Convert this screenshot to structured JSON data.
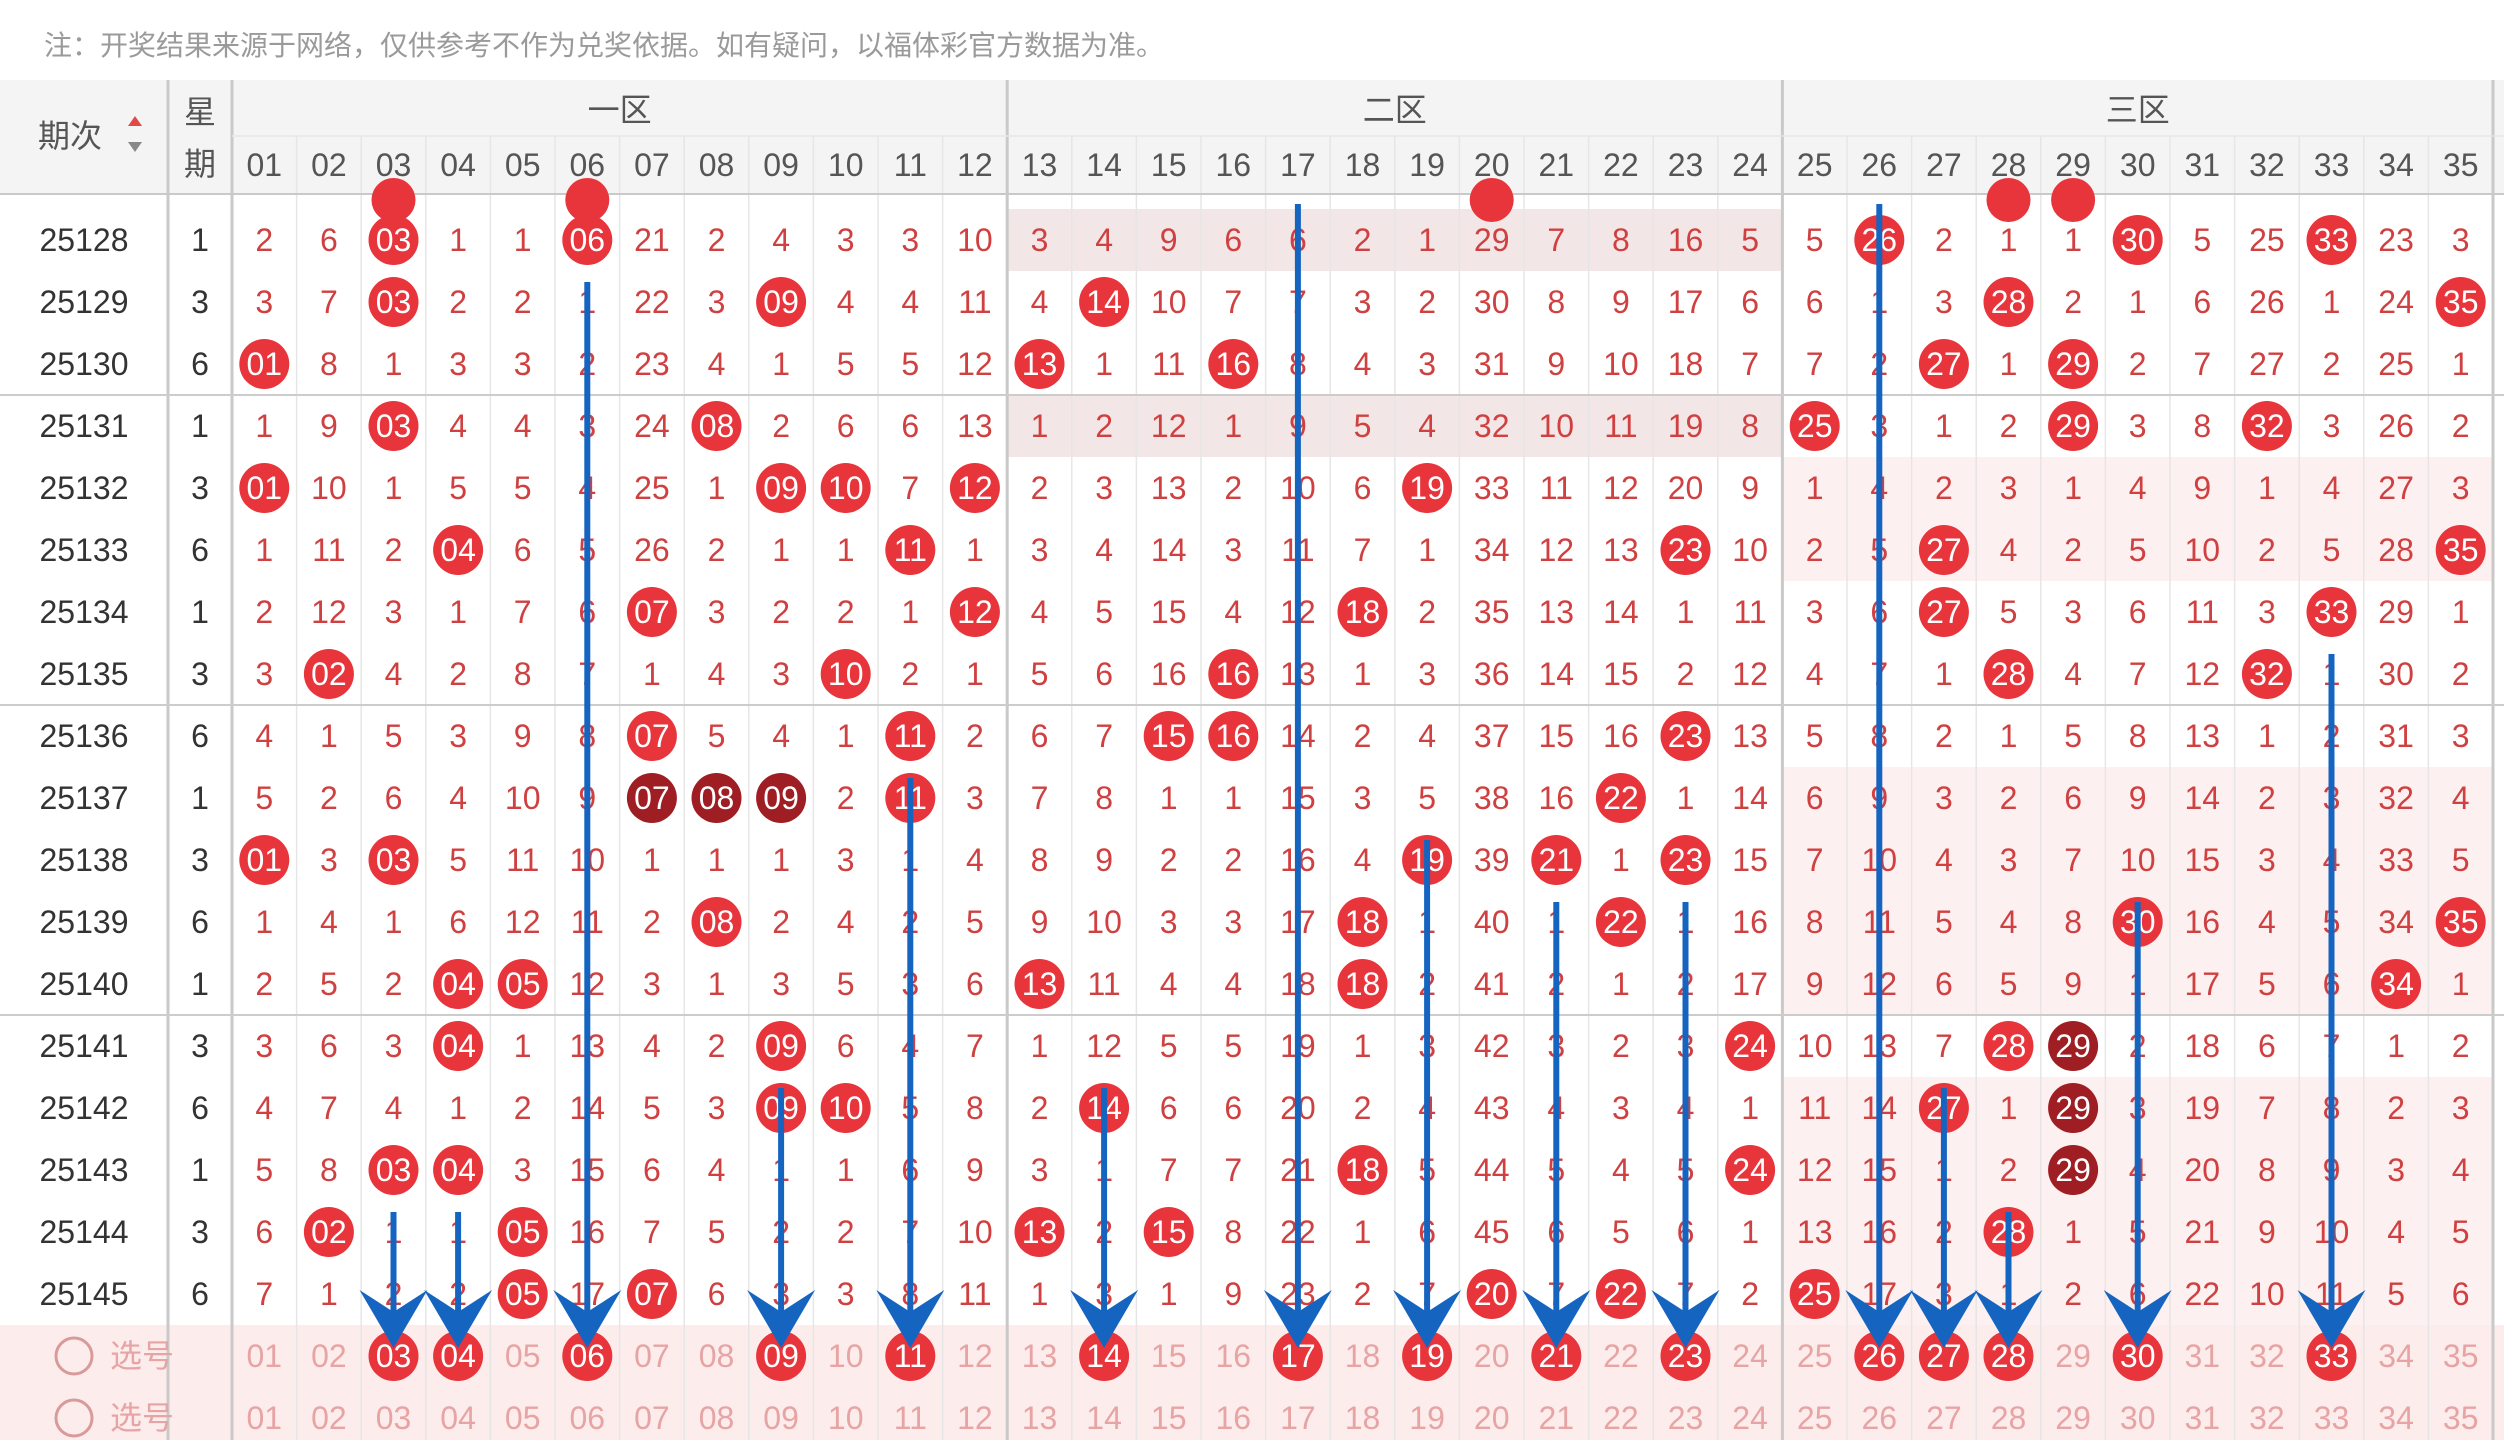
{
  "notice": "注：开奖结果来源于网络，仅供参考不作为兑奖依据。如有疑问，以福体彩官方数据为准。",
  "header": {
    "period_label": "期次",
    "week_label": "星期",
    "zones": [
      "一区",
      "二区",
      "三区"
    ],
    "numbers": [
      "01",
      "02",
      "03",
      "04",
      "05",
      "06",
      "07",
      "08",
      "09",
      "10",
      "11",
      "12",
      "13",
      "14",
      "15",
      "16",
      "17",
      "18",
      "19",
      "20",
      "21",
      "22",
      "23",
      "24",
      "25",
      "26",
      "27",
      "28",
      "29",
      "30",
      "31",
      "32",
      "33",
      "34",
      "35"
    ]
  },
  "rows": [
    {
      "period": "25128",
      "week": "1",
      "cells": [
        "2",
        "6",
        "03",
        "1",
        "1",
        "06",
        "21",
        "2",
        "4",
        "3",
        "3",
        "10",
        "3",
        "4",
        "9",
        "6",
        "6",
        "2",
        "1",
        "29",
        "7",
        "8",
        "16",
        "5",
        "5",
        "26",
        "2",
        "1",
        "1",
        "30",
        "5",
        "25",
        "33",
        "23",
        "3"
      ],
      "hits": [
        3,
        6,
        26,
        30,
        33
      ]
    },
    {
      "period": "25129",
      "week": "3",
      "cells": [
        "3",
        "7",
        "03",
        "2",
        "2",
        "1",
        "22",
        "3",
        "09",
        "4",
        "4",
        "11",
        "4",
        "14",
        "10",
        "7",
        "7",
        "3",
        "2",
        "30",
        "8",
        "9",
        "17",
        "6",
        "6",
        "1",
        "3",
        "28",
        "2",
        "1",
        "6",
        "26",
        "1",
        "24",
        "35"
      ],
      "hits": [
        3,
        9,
        14,
        28,
        35
      ]
    },
    {
      "period": "25130",
      "week": "6",
      "cells": [
        "01",
        "8",
        "1",
        "3",
        "3",
        "2",
        "23",
        "4",
        "1",
        "5",
        "5",
        "12",
        "13",
        "1",
        "11",
        "16",
        "8",
        "4",
        "3",
        "31",
        "9",
        "10",
        "18",
        "7",
        "7",
        "2",
        "27",
        "1",
        "29",
        "2",
        "7",
        "27",
        "2",
        "25",
        "1"
      ],
      "hits": [
        1,
        13,
        16,
        27,
        29
      ]
    },
    {
      "period": "25131",
      "week": "1",
      "cells": [
        "1",
        "9",
        "03",
        "4",
        "4",
        "3",
        "24",
        "08",
        "2",
        "6",
        "6",
        "13",
        "1",
        "2",
        "12",
        "1",
        "9",
        "5",
        "4",
        "32",
        "10",
        "11",
        "19",
        "8",
        "25",
        "3",
        "1",
        "2",
        "29",
        "3",
        "8",
        "32",
        "3",
        "26",
        "2"
      ],
      "hits": [
        3,
        8,
        25,
        29,
        32
      ]
    },
    {
      "period": "25132",
      "week": "3",
      "cells": [
        "01",
        "10",
        "1",
        "5",
        "5",
        "4",
        "25",
        "1",
        "09",
        "10",
        "7",
        "12",
        "2",
        "3",
        "13",
        "2",
        "10",
        "6",
        "19",
        "33",
        "11",
        "12",
        "20",
        "9",
        "1",
        "4",
        "2",
        "3",
        "1",
        "4",
        "9",
        "1",
        "4",
        "27",
        "3"
      ],
      "hits": [
        1,
        9,
        10,
        12,
        19
      ]
    },
    {
      "period": "25133",
      "week": "6",
      "cells": [
        "1",
        "11",
        "2",
        "04",
        "6",
        "5",
        "26",
        "2",
        "1",
        "1",
        "11",
        "1",
        "3",
        "4",
        "14",
        "3",
        "11",
        "7",
        "1",
        "34",
        "12",
        "13",
        "23",
        "10",
        "2",
        "5",
        "27",
        "4",
        "2",
        "5",
        "10",
        "2",
        "5",
        "28",
        "35"
      ],
      "hits": [
        4,
        11,
        23,
        27,
        35
      ]
    },
    {
      "period": "25134",
      "week": "1",
      "cells": [
        "2",
        "12",
        "3",
        "1",
        "7",
        "6",
        "07",
        "3",
        "2",
        "2",
        "1",
        "12",
        "4",
        "5",
        "15",
        "4",
        "12",
        "18",
        "2",
        "35",
        "13",
        "14",
        "1",
        "11",
        "3",
        "6",
        "27",
        "5",
        "3",
        "6",
        "11",
        "3",
        "33",
        "29",
        "1"
      ],
      "hits": [
        7,
        12,
        18,
        27,
        33
      ]
    },
    {
      "period": "25135",
      "week": "3",
      "cells": [
        "3",
        "02",
        "4",
        "2",
        "8",
        "7",
        "1",
        "4",
        "3",
        "10",
        "2",
        "1",
        "5",
        "6",
        "16",
        "16",
        "13",
        "1",
        "3",
        "36",
        "14",
        "15",
        "2",
        "12",
        "4",
        "7",
        "1",
        "28",
        "4",
        "7",
        "12",
        "32",
        "1",
        "30",
        "2"
      ],
      "hits": [
        2,
        10,
        16,
        28,
        32
      ]
    },
    {
      "period": "25136",
      "week": "6",
      "cells": [
        "4",
        "1",
        "5",
        "3",
        "9",
        "8",
        "07",
        "5",
        "4",
        "1",
        "11",
        "2",
        "6",
        "7",
        "15",
        "16",
        "14",
        "2",
        "4",
        "37",
        "15",
        "16",
        "23",
        "13",
        "5",
        "8",
        "2",
        "1",
        "5",
        "8",
        "13",
        "1",
        "2",
        "31",
        "3"
      ],
      "hits": [
        7,
        11,
        15,
        16,
        23
      ]
    },
    {
      "period": "25137",
      "week": "1",
      "cells": [
        "5",
        "2",
        "6",
        "4",
        "10",
        "9",
        "07",
        "08",
        "09",
        "2",
        "11",
        "3",
        "7",
        "8",
        "1",
        "1",
        "15",
        "3",
        "5",
        "38",
        "16",
        "22",
        "1",
        "14",
        "6",
        "9",
        "3",
        "2",
        "6",
        "9",
        "14",
        "2",
        "3",
        "32",
        "4"
      ],
      "hits": [
        7,
        8,
        9,
        11,
        22
      ]
    },
    {
      "period": "25138",
      "week": "3",
      "cells": [
        "01",
        "3",
        "03",
        "5",
        "11",
        "10",
        "1",
        "1",
        "1",
        "3",
        "1",
        "4",
        "8",
        "9",
        "2",
        "2",
        "16",
        "4",
        "19",
        "39",
        "21",
        "1",
        "23",
        "15",
        "7",
        "10",
        "4",
        "3",
        "7",
        "10",
        "15",
        "3",
        "4",
        "33",
        "5"
      ],
      "hits": [
        1,
        3,
        19,
        21,
        23
      ]
    },
    {
      "period": "25139",
      "week": "6",
      "cells": [
        "1",
        "4",
        "1",
        "6",
        "12",
        "11",
        "2",
        "08",
        "2",
        "4",
        "2",
        "5",
        "9",
        "10",
        "3",
        "3",
        "17",
        "18",
        "1",
        "40",
        "1",
        "22",
        "1",
        "16",
        "8",
        "11",
        "5",
        "4",
        "8",
        "30",
        "16",
        "4",
        "5",
        "34",
        "35"
      ],
      "hits": [
        8,
        18,
        22,
        30,
        35
      ]
    },
    {
      "period": "25140",
      "week": "1",
      "cells": [
        "2",
        "5",
        "2",
        "04",
        "05",
        "12",
        "3",
        "1",
        "3",
        "5",
        "3",
        "6",
        "13",
        "11",
        "4",
        "4",
        "18",
        "18",
        "2",
        "41",
        "2",
        "1",
        "2",
        "17",
        "9",
        "12",
        "6",
        "5",
        "9",
        "1",
        "17",
        "5",
        "6",
        "34",
        "1"
      ],
      "hits": [
        4,
        5,
        13,
        18,
        34
      ]
    },
    {
      "period": "25141",
      "week": "3",
      "cells": [
        "3",
        "6",
        "3",
        "04",
        "1",
        "13",
        "4",
        "2",
        "09",
        "6",
        "4",
        "7",
        "1",
        "12",
        "5",
        "5",
        "19",
        "1",
        "3",
        "42",
        "3",
        "2",
        "3",
        "24",
        "10",
        "13",
        "7",
        "28",
        "29",
        "2",
        "18",
        "6",
        "7",
        "1",
        "2"
      ],
      "hits": [
        4,
        9,
        24,
        28,
        29
      ]
    },
    {
      "period": "25142",
      "week": "6",
      "cells": [
        "4",
        "7",
        "4",
        "1",
        "2",
        "14",
        "5",
        "3",
        "09",
        "10",
        "5",
        "8",
        "2",
        "14",
        "6",
        "6",
        "20",
        "2",
        "4",
        "43",
        "4",
        "3",
        "4",
        "1",
        "11",
        "14",
        "27",
        "1",
        "29",
        "3",
        "19",
        "7",
        "8",
        "2",
        "3"
      ],
      "hits": [
        9,
        10,
        14,
        27,
        29
      ]
    },
    {
      "period": "25143",
      "week": "1",
      "cells": [
        "5",
        "8",
        "03",
        "04",
        "3",
        "15",
        "6",
        "4",
        "1",
        "1",
        "6",
        "9",
        "3",
        "1",
        "7",
        "7",
        "21",
        "18",
        "5",
        "44",
        "5",
        "4",
        "5",
        "24",
        "12",
        "15",
        "1",
        "2",
        "29",
        "4",
        "20",
        "8",
        "9",
        "3",
        "4"
      ],
      "hits": [
        3,
        4,
        18,
        24,
        29
      ]
    },
    {
      "period": "25144",
      "week": "3",
      "cells": [
        "6",
        "02",
        "1",
        "1",
        "05",
        "16",
        "7",
        "5",
        "2",
        "2",
        "7",
        "10",
        "13",
        "2",
        "15",
        "8",
        "22",
        "1",
        "6",
        "45",
        "6",
        "5",
        "6",
        "1",
        "13",
        "16",
        "2",
        "28",
        "1",
        "5",
        "21",
        "9",
        "10",
        "4",
        "5"
      ],
      "hits": [
        2,
        5,
        13,
        15,
        28
      ]
    },
    {
      "period": "25145",
      "week": "6",
      "cells": [
        "7",
        "1",
        "2",
        "2",
        "05",
        "17",
        "07",
        "6",
        "3",
        "3",
        "8",
        "11",
        "1",
        "3",
        "1",
        "9",
        "23",
        "2",
        "7",
        "20",
        "7",
        "22",
        "7",
        "2",
        "25",
        "17",
        "3",
        "1",
        "2",
        "6",
        "22",
        "10",
        "11",
        "5",
        "6"
      ],
      "hits": [
        5,
        7,
        20,
        22,
        25
      ]
    }
  ],
  "select_rows": [
    {
      "label": "选号",
      "selected": [
        3,
        4,
        6,
        9,
        11,
        14,
        17,
        19,
        21,
        23,
        26,
        27,
        28,
        30,
        33
      ]
    },
    {
      "label": "选号",
      "selected": []
    }
  ],
  "arrows": [
    {
      "col": 3,
      "from_row": 16
    },
    {
      "col": 4,
      "from_row": 16
    },
    {
      "col": 6,
      "from_row": 1
    },
    {
      "col": 9,
      "from_row": 14
    },
    {
      "col": 11,
      "from_row": 9
    },
    {
      "col": 14,
      "from_row": 14
    },
    {
      "col": 17,
      "from_row": 0
    },
    {
      "col": 19,
      "from_row": 10
    },
    {
      "col": 21,
      "from_row": 11
    },
    {
      "col": 23,
      "from_row": 11
    },
    {
      "col": 26,
      "from_row": 0
    },
    {
      "col": 27,
      "from_row": 14
    },
    {
      "col": 28,
      "from_row": 16
    },
    {
      "col": 30,
      "from_row": 11
    },
    {
      "col": 33,
      "from_row": 7
    }
  ],
  "colors": {
    "hit": "#e8343b",
    "hit_dark": "#9e1e24",
    "number_text": "#d04040",
    "select_text": "#e7a4a4",
    "arrow": "#1565c0",
    "grid_line": "#e6e6e6",
    "zone_divider": "#c9c9c9",
    "shade_zone2": "#f3e6e6",
    "shade_zone3": "#fdf0f0",
    "header_bg": "#f4f4f4",
    "select_bg": "#fdecec"
  }
}
